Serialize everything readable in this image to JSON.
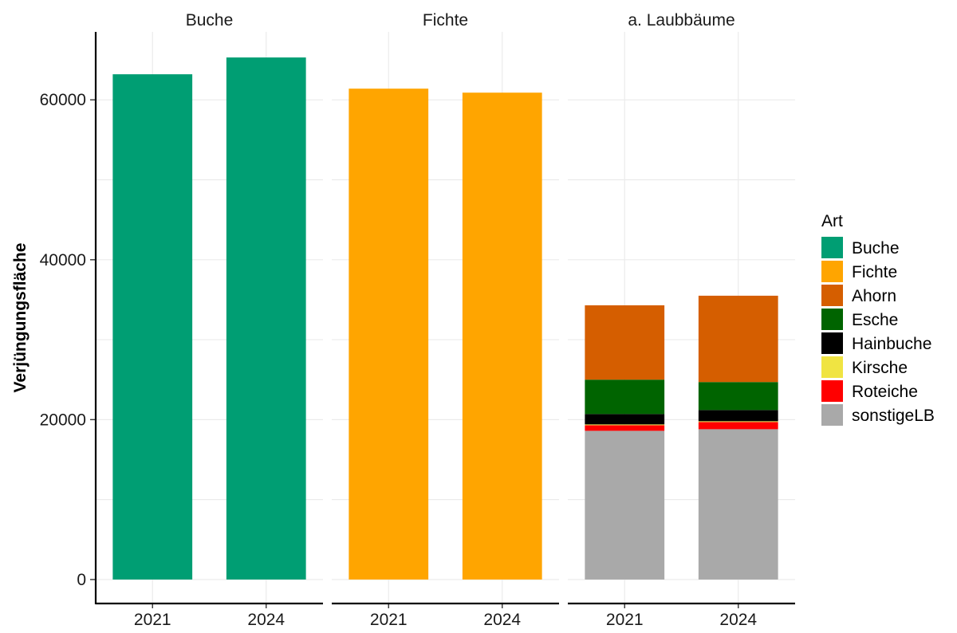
{
  "chart_data": {
    "type": "bar",
    "stacked": true,
    "facets": [
      {
        "title": "Buche",
        "categories": [
          "2021",
          "2024"
        ],
        "series": [
          {
            "name": "Buche",
            "values": [
              63200,
              65300
            ]
          }
        ]
      },
      {
        "title": "Fichte",
        "categories": [
          "2021",
          "2024"
        ],
        "series": [
          {
            "name": "Fichte",
            "values": [
              61400,
              60900
            ]
          }
        ]
      },
      {
        "title": "a. Laubbäume",
        "categories": [
          "2021",
          "2024"
        ],
        "series": [
          {
            "name": "sonstigeLB",
            "values": [
              18600,
              18800
            ]
          },
          {
            "name": "Roteiche",
            "values": [
              700,
              900
            ]
          },
          {
            "name": "Kirsche",
            "values": [
              100,
              100
            ]
          },
          {
            "name": "Hainbuche",
            "values": [
              1300,
              1400
            ]
          },
          {
            "name": "Esche",
            "values": [
              4300,
              3500
            ]
          },
          {
            "name": "Ahorn",
            "values": [
              9300,
              10800
            ]
          }
        ]
      }
    ],
    "ylabel": "Verjüngungsfläche",
    "xlabel": "",
    "ylim": [
      -3000,
      68500
    ],
    "yticks": [
      0,
      20000,
      40000,
      60000
    ],
    "ytick_labels": [
      "0",
      "20000",
      "40000",
      "60000"
    ],
    "grid": true,
    "legend": {
      "title": "Art",
      "placement": "right",
      "items": [
        {
          "name": "Buche",
          "color": "#009E73"
        },
        {
          "name": "Fichte",
          "color": "#FFA500"
        },
        {
          "name": "Ahorn",
          "color": "#D55E00"
        },
        {
          "name": "Esche",
          "color": "#006400"
        },
        {
          "name": "Hainbuche",
          "color": "#000000"
        },
        {
          "name": "Kirsche",
          "color": "#F0E442"
        },
        {
          "name": "Roteiche",
          "color": "#FF0000"
        },
        {
          "name": "sonstigeLB",
          "color": "#A9A9A9"
        }
      ]
    }
  }
}
